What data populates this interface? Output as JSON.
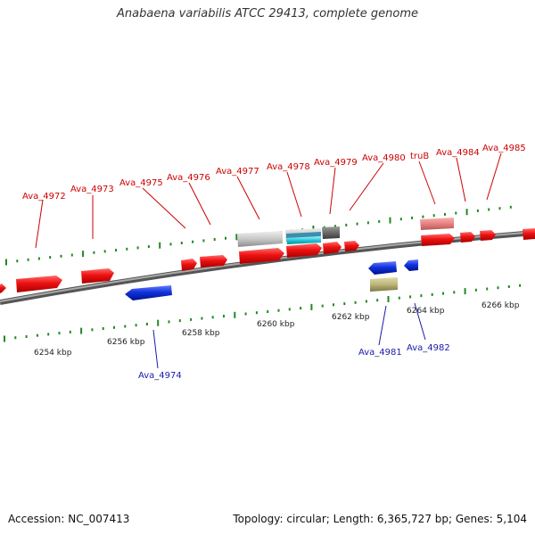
{
  "title": "Anabaena variabilis ATCC 29413, complete genome",
  "footer": {
    "accession": "Accession: NC_007413",
    "summary": "Topology: circular; Length: 6,365,727 bp; Genes: 5,104"
  },
  "colors": {
    "forward_gene": "#ee1111",
    "reverse_gene": "#1133dd",
    "backbone": "#888888",
    "ticks": "#228822",
    "label_forward": "#cc0000",
    "label_reverse": "#1a1aaa",
    "scale_text": "#222222"
  },
  "scale": {
    "unit": "kbp",
    "labels": [
      "6254 kbp",
      "6256 kbp",
      "6258 kbp",
      "6260 kbp",
      "6262 kbp",
      "6264 kbp",
      "6266 kbp"
    ]
  },
  "genes": [
    {
      "name": "Ava_4972",
      "strand": "+"
    },
    {
      "name": "Ava_4973",
      "strand": "+"
    },
    {
      "name": "Ava_4975",
      "strand": "+"
    },
    {
      "name": "Ava_4976",
      "strand": "+"
    },
    {
      "name": "Ava_4977",
      "strand": "+"
    },
    {
      "name": "Ava_4978",
      "strand": "+"
    },
    {
      "name": "Ava_4979",
      "strand": "+"
    },
    {
      "name": "Ava_4980",
      "strand": "+"
    },
    {
      "name": "truB",
      "strand": "+"
    },
    {
      "name": "Ava_4984",
      "strand": "+"
    },
    {
      "name": "Ava_4985",
      "strand": "+"
    },
    {
      "name": "Ava_4974",
      "strand": "-"
    },
    {
      "name": "Ava_4981",
      "strand": "-"
    },
    {
      "name": "Ava_4982",
      "strand": "-"
    }
  ]
}
